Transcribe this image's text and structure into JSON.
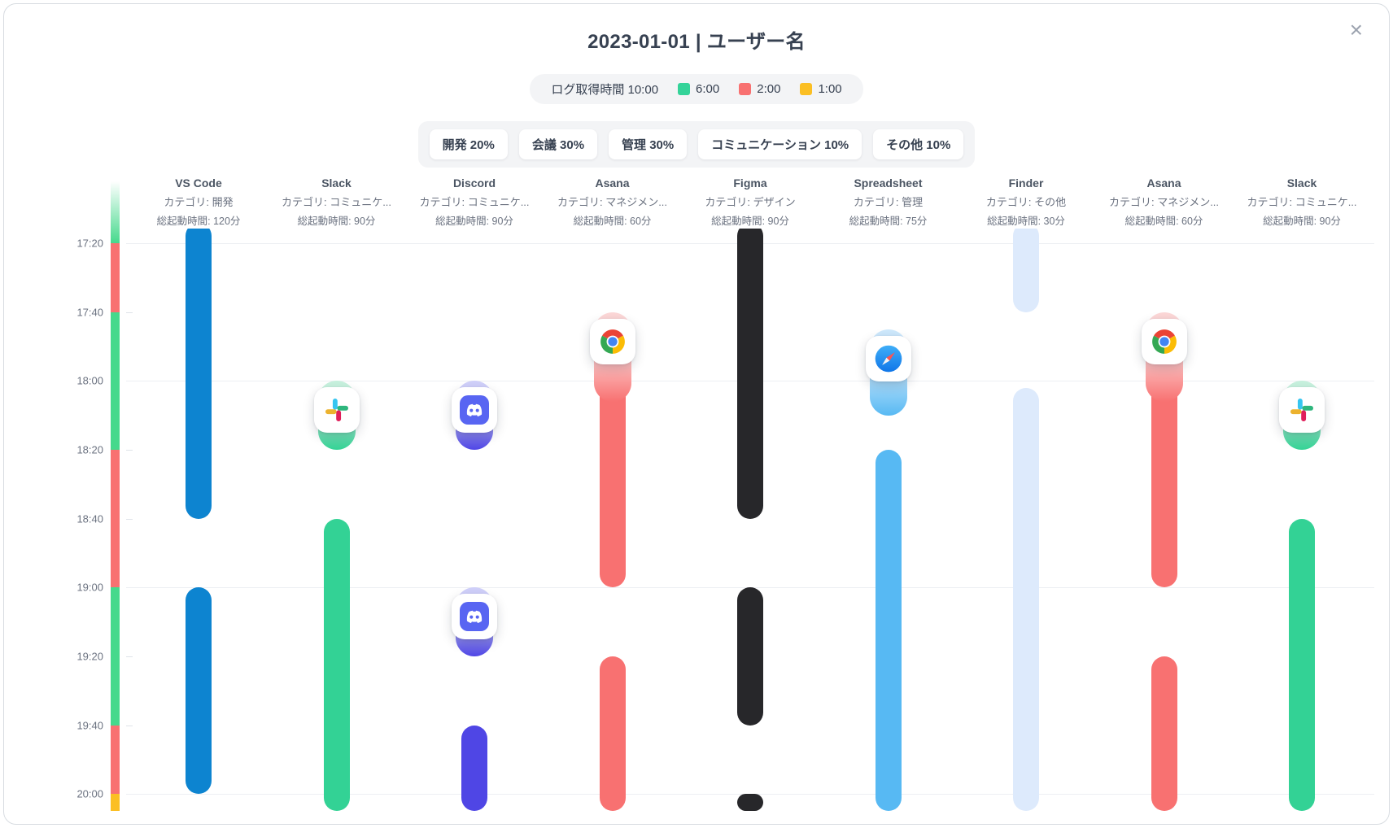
{
  "dialog": {
    "title": "2023-01-01 | ユーザー名",
    "close_icon": "×"
  },
  "summary": {
    "log_label": "ログ取得時間 10:00",
    "log_total": "10:00",
    "durations": [
      {
        "time": "6:00",
        "color": "#34d399"
      },
      {
        "time": "2:00",
        "color": "#f87171"
      },
      {
        "time": "1:00",
        "color": "#fbbf24"
      }
    ],
    "categories": [
      "開発 20%",
      "会議 30%",
      "管理 30%",
      "コミュニケーション 10%",
      "その他 10%"
    ]
  },
  "chart_data": {
    "type": "timeline",
    "title": "2023-01-01 | ユーザー名",
    "legend": {
      "label": "ログ取得時間",
      "total": "10:00",
      "breakdown": [
        {
          "duration": "6:00",
          "color": "#34d399"
        },
        {
          "duration": "2:00",
          "color": "#f87171"
        },
        {
          "duration": "1:00",
          "color": "#fbbf24"
        }
      ]
    },
    "category_percentages": [
      {
        "label": "開発",
        "percent": 20
      },
      {
        "label": "会議",
        "percent": 30
      },
      {
        "label": "管理",
        "percent": 30
      },
      {
        "label": "コミュニケーション",
        "percent": 10
      },
      {
        "label": "その他",
        "percent": 10
      }
    ],
    "y_axis": {
      "ticks": [
        "17:20",
        "17:40",
        "18:00",
        "18:20",
        "18:40",
        "19:00",
        "19:20",
        "19:40",
        "20:00"
      ],
      "major": [
        "17:20",
        "18:00",
        "19:00",
        "20:00"
      ],
      "start": "17:20",
      "end": "20:05"
    },
    "status_strip": [
      {
        "from": "17:02",
        "to": "17:20",
        "color": "#45d98c",
        "fade_top": true
      },
      {
        "from": "17:20",
        "to": "17:40",
        "color": "#f87171"
      },
      {
        "from": "17:40",
        "to": "18:20",
        "color": "#45d98c"
      },
      {
        "from": "18:20",
        "to": "19:00",
        "color": "#f87171"
      },
      {
        "from": "19:00",
        "to": "19:40",
        "color": "#45d98c"
      },
      {
        "from": "19:40",
        "to": "20:00",
        "color": "#f87171"
      },
      {
        "from": "20:00",
        "to": "20:05",
        "color": "#fbbf24"
      }
    ],
    "columns": [
      {
        "name": "VS Code",
        "category_label": "カテゴリ: 開発",
        "total_label": "総起動時間: 120分",
        "category": "開発",
        "total_minutes": 120,
        "color": "#0d84d0",
        "tint": "#c3e2f6",
        "bars": [
          {
            "from": "17:14",
            "to": "18:40"
          },
          {
            "from": "19:00",
            "to": "20:00"
          }
        ],
        "markers": []
      },
      {
        "name": "Slack",
        "category_label": "カテゴリ: コミュニケ...",
        "total_label": "総起動時間: 90分",
        "category": "コミュニケーション",
        "total_minutes": 90,
        "color": "#33d295",
        "tint": "#c7f1de",
        "bars": [
          {
            "from": "18:40",
            "to": "20:05"
          }
        ],
        "markers": [
          {
            "icon": "slack",
            "from": "18:00",
            "to": "18:20"
          }
        ]
      },
      {
        "name": "Discord",
        "category_label": "カテゴリ: コミュニケ...",
        "total_label": "総起動時間: 90分",
        "category": "コミュニケーション",
        "total_minutes": 90,
        "color": "#4f46e5",
        "tint": "#d0d0fa",
        "bars": [
          {
            "from": "19:40",
            "to": "20:05"
          }
        ],
        "markers": [
          {
            "icon": "discord",
            "from": "18:00",
            "to": "18:20"
          },
          {
            "icon": "discord",
            "from": "19:00",
            "to": "19:20"
          }
        ]
      },
      {
        "name": "Asana",
        "category_label": "カテゴリ: マネジメン...",
        "total_label": "総起動時間: 60分",
        "category": "マネジメント",
        "total_minutes": 60,
        "color": "#f87171",
        "tint": "#fcd7d7",
        "bars": [
          {
            "from": "17:45",
            "to": "19:00"
          },
          {
            "from": "19:20",
            "to": "20:05"
          }
        ],
        "markers": [
          {
            "icon": "chrome",
            "from": "17:40",
            "to": "18:06"
          }
        ]
      },
      {
        "name": "Figma",
        "category_label": "カテゴリ: デザイン",
        "total_label": "総起動時間: 90分",
        "category": "デザイン",
        "total_minutes": 90,
        "color": "#27272a",
        "tint": "#d4d4d8",
        "bars": [
          {
            "from": "17:14",
            "to": "18:40"
          },
          {
            "from": "19:00",
            "to": "19:40"
          },
          {
            "from": "20:00",
            "to": "20:05"
          }
        ],
        "markers": []
      },
      {
        "name": "Spreadsheet",
        "category_label": "カテゴリ: 管理",
        "total_label": "総起動時間: 75分",
        "category": "管理",
        "total_minutes": 75,
        "color": "#57b9f3",
        "tint": "#cde8fc",
        "bars": [
          {
            "from": "18:20",
            "to": "20:05"
          }
        ],
        "markers": [
          {
            "icon": "safari",
            "from": "17:45",
            "to": "18:10"
          }
        ]
      },
      {
        "name": "Finder",
        "category_label": "カテゴリ: その他",
        "total_label": "総起動時間: 30分",
        "category": "その他",
        "total_minutes": 30,
        "color": "#ddeafc",
        "tint": "#eef5fd",
        "bars": [
          {
            "from": "17:14",
            "to": "17:40"
          },
          {
            "from": "18:02",
            "to": "20:05"
          }
        ],
        "markers": []
      },
      {
        "name": "Asana",
        "category_label": "カテゴリ: マネジメン...",
        "total_label": "総起動時間: 60分",
        "category": "マネジメント",
        "total_minutes": 60,
        "color": "#f87171",
        "tint": "#fcd7d7",
        "bars": [
          {
            "from": "17:45",
            "to": "19:00"
          },
          {
            "from": "19:20",
            "to": "20:05"
          }
        ],
        "markers": [
          {
            "icon": "chrome",
            "from": "17:40",
            "to": "18:06"
          }
        ]
      },
      {
        "name": "Slack",
        "category_label": "カテゴリ: コミュニケ...",
        "total_label": "総起動時間: 90分",
        "category": "コミュニケーション",
        "total_minutes": 90,
        "color": "#33d295",
        "tint": "#c7f1de",
        "bars": [
          {
            "from": "18:40",
            "to": "20:05"
          }
        ],
        "markers": [
          {
            "icon": "slack",
            "from": "18:00",
            "to": "18:20"
          }
        ]
      }
    ]
  }
}
